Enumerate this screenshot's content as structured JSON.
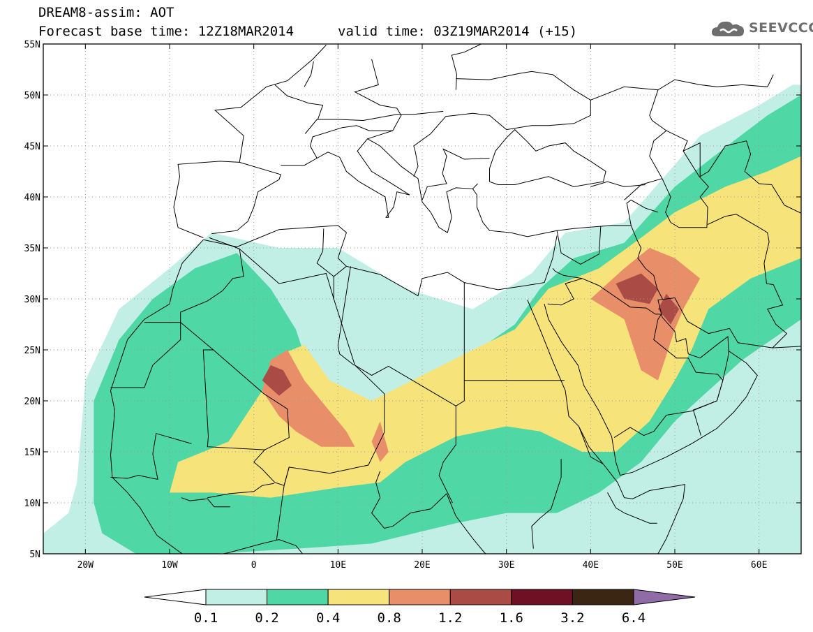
{
  "title": {
    "line1": "DREAM8-assim: AOT",
    "line2_left": "Forecast base time: 12Z18MAR2014",
    "line2_right": "valid time: 03Z19MAR2014 (+15)"
  },
  "logo": {
    "text": "SEEVCCC",
    "icon": "cloud-icon"
  },
  "axes": {
    "lon_range": [
      -25,
      65
    ],
    "lat_range": [
      5,
      55
    ],
    "lat_ticks": [
      {
        "value": 55,
        "label": "55N"
      },
      {
        "value": 50,
        "label": "50N"
      },
      {
        "value": 45,
        "label": "45N"
      },
      {
        "value": 40,
        "label": "40N"
      },
      {
        "value": 35,
        "label": "35N"
      },
      {
        "value": 30,
        "label": "30N"
      },
      {
        "value": 25,
        "label": "25N"
      },
      {
        "value": 20,
        "label": "20N"
      },
      {
        "value": 15,
        "label": "15N"
      },
      {
        "value": 10,
        "label": "10N"
      },
      {
        "value": 5,
        "label": "5N"
      }
    ],
    "lon_ticks": [
      {
        "value": -20,
        "label": "20W"
      },
      {
        "value": -10,
        "label": "10W"
      },
      {
        "value": 0,
        "label": "0"
      },
      {
        "value": 10,
        "label": "10E"
      },
      {
        "value": 20,
        "label": "20E"
      },
      {
        "value": 30,
        "label": "30E"
      },
      {
        "value": 40,
        "label": "40E"
      },
      {
        "value": 50,
        "label": "50E"
      },
      {
        "value": 60,
        "label": "60E"
      }
    ],
    "grid": "dotted"
  },
  "colorbar": {
    "boundaries": [
      "0.1",
      "0.2",
      "0.4",
      "0.8",
      "1.2",
      "1.6",
      "3.2",
      "6.4"
    ],
    "colors": [
      "#ffffff",
      "#c1efe6",
      "#4fd7a5",
      "#f6e37a",
      "#e88f6a",
      "#ab4b45",
      "#6f1024",
      "#3b2513",
      "#8f6ca6"
    ],
    "extend": "both"
  },
  "aot_regions": [
    {
      "level": 0.1,
      "color": "#c1efe6",
      "lonlat": [
        [
          -21,
          12
        ],
        [
          -20,
          22
        ],
        [
          -16,
          29
        ],
        [
          -10,
          33
        ],
        [
          -5,
          36.5
        ],
        [
          3,
          35
        ],
        [
          10,
          35
        ],
        [
          18,
          31
        ],
        [
          26,
          29
        ],
        [
          33,
          32.5
        ],
        [
          37,
          36.5
        ],
        [
          44,
          37.5
        ],
        [
          53,
          46
        ],
        [
          60,
          49
        ],
        [
          64,
          51
        ],
        [
          65,
          51
        ],
        [
          65,
          5
        ],
        [
          -25,
          5
        ],
        [
          -25,
          7
        ],
        [
          -22,
          9
        ]
      ]
    },
    {
      "level": 0.2,
      "color": "#4fd7a5",
      "lonlat": [
        [
          -19,
          10
        ],
        [
          -19,
          20
        ],
        [
          -16,
          26
        ],
        [
          -12,
          30
        ],
        [
          -7,
          33
        ],
        [
          -2,
          34.5
        ],
        [
          2,
          31
        ],
        [
          5,
          27
        ],
        [
          7,
          22
        ],
        [
          13,
          19
        ],
        [
          19,
          20.5
        ],
        [
          24,
          23.5
        ],
        [
          31,
          27.5
        ],
        [
          34,
          31
        ],
        [
          38,
          34
        ],
        [
          44,
          35.5
        ],
        [
          50,
          41
        ],
        [
          57,
          45.5
        ],
        [
          61,
          48
        ],
        [
          65,
          50
        ],
        [
          65,
          28
        ],
        [
          58,
          24
        ],
        [
          50,
          18
        ],
        [
          46,
          14
        ],
        [
          41,
          11
        ],
        [
          36,
          9
        ],
        [
          30,
          9
        ],
        [
          24,
          8
        ],
        [
          14,
          6
        ],
        [
          5,
          5.5
        ],
        [
          -5,
          5
        ],
        [
          -14,
          5
        ],
        [
          -18,
          7
        ]
      ]
    },
    {
      "level": 0.4,
      "color": "#f6e37a",
      "lonlat": [
        [
          -10,
          11
        ],
        [
          -9,
          14
        ],
        [
          -3,
          16
        ],
        [
          1,
          21
        ],
        [
          3,
          24.5
        ],
        [
          6,
          25.5
        ],
        [
          9,
          22
        ],
        [
          14,
          20
        ],
        [
          20,
          22.5
        ],
        [
          26,
          25
        ],
        [
          31,
          27
        ],
        [
          35,
          31
        ],
        [
          41,
          33
        ],
        [
          46,
          36
        ],
        [
          50,
          38.5
        ],
        [
          56,
          41
        ],
        [
          61,
          42.5
        ],
        [
          65,
          44
        ],
        [
          65,
          34
        ],
        [
          59,
          32
        ],
        [
          54,
          29
        ],
        [
          52,
          25
        ],
        [
          50,
          22
        ],
        [
          47,
          18
        ],
        [
          43,
          15
        ],
        [
          39,
          15
        ],
        [
          34,
          17
        ],
        [
          30,
          17.5
        ],
        [
          24,
          16.5
        ],
        [
          18,
          14
        ],
        [
          15,
          12
        ],
        [
          10,
          11.5
        ],
        [
          2,
          10.5
        ],
        [
          -5,
          11
        ]
      ]
    },
    {
      "level": 0.8,
      "color": "#e88f6a",
      "lonlat": [
        [
          1,
          21
        ],
        [
          2,
          24
        ],
        [
          4,
          25
        ],
        [
          6,
          22
        ],
        [
          9,
          19
        ],
        [
          11,
          17
        ],
        [
          12,
          15.5
        ],
        [
          8,
          15.5
        ],
        [
          5,
          17
        ],
        [
          3,
          18.5
        ]
      ]
    },
    {
      "level": 0.8,
      "color": "#e88f6a",
      "lonlat": [
        [
          14,
          16
        ],
        [
          15,
          18
        ],
        [
          16,
          15
        ],
        [
          15,
          14
        ]
      ]
    },
    {
      "level": 0.8,
      "color": "#e88f6a",
      "lonlat": [
        [
          40,
          30
        ],
        [
          44,
          33
        ],
        [
          47,
          35
        ],
        [
          50,
          34
        ],
        [
          53,
          32
        ],
        [
          51,
          29
        ],
        [
          50,
          27
        ],
        [
          48,
          22
        ],
        [
          46,
          23
        ],
        [
          44,
          28
        ]
      ]
    },
    {
      "level": 1.2,
      "color": "#ab4b45",
      "lonlat": [
        [
          1,
          22
        ],
        [
          2,
          23.5
        ],
        [
          3.5,
          23
        ],
        [
          4.5,
          21.5
        ],
        [
          3,
          20.5
        ]
      ]
    },
    {
      "level": 1.2,
      "color": "#ab4b45",
      "lonlat": [
        [
          43,
          31.5
        ],
        [
          46,
          32.5
        ],
        [
          48,
          31
        ],
        [
          47,
          29.5
        ],
        [
          44,
          30
        ]
      ]
    },
    {
      "level": 1.2,
      "color": "#ab4b45",
      "lonlat": [
        [
          48,
          29
        ],
        [
          49,
          30.5
        ],
        [
          50.5,
          29
        ],
        [
          49.5,
          27.5
        ]
      ]
    }
  ]
}
